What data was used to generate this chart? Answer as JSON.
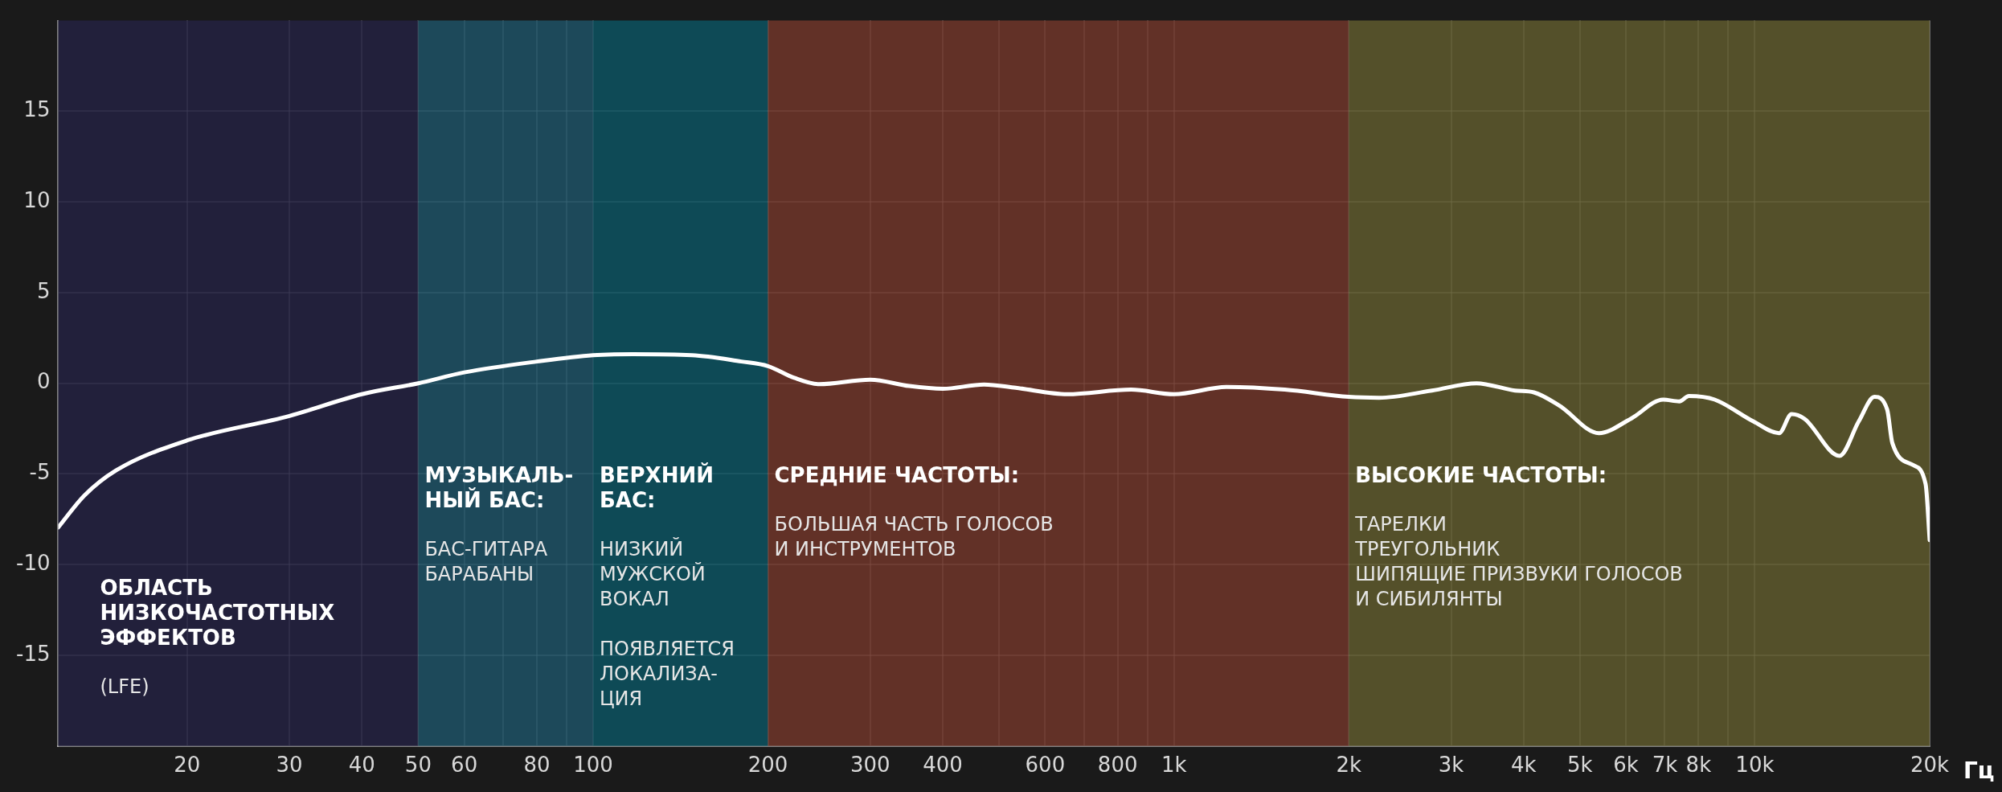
{
  "chart_data": {
    "type": "line",
    "xlabel": "Гц",
    "xlim": [
      12,
      20000
    ],
    "ylim": [
      -20,
      20
    ],
    "log": "x",
    "grid": true,
    "legend": false,
    "marker": "none",
    "line_style": "solid",
    "xticks": [
      20,
      30,
      40,
      50,
      60,
      {
        "value": 70,
        "label": null
      },
      80,
      {
        "value": 90,
        "label": null
      },
      100,
      200,
      300,
      400,
      {
        "value": 500,
        "label": null
      },
      600,
      {
        "value": 700,
        "label": null
      },
      800,
      {
        "value": 900,
        "label": null
      },
      {
        "value": 1000,
        "label": "1k"
      },
      {
        "value": 2000,
        "label": "2k"
      },
      {
        "value": 3000,
        "label": "3k"
      },
      {
        "value": 4000,
        "label": "4k"
      },
      {
        "value": 5000,
        "label": "5k"
      },
      {
        "value": 6000,
        "label": "6k"
      },
      {
        "value": 7000,
        "label": "7k"
      },
      {
        "value": 8000,
        "label": "8k"
      },
      {
        "value": 9000,
        "label": null
      },
      {
        "value": 10000,
        "label": "10k"
      },
      {
        "value": 20000,
        "label": "20k"
      }
    ],
    "yticks": [
      -15,
      -10,
      -5,
      0,
      5,
      10,
      15
    ],
    "series": [
      {
        "color": "#ffffff",
        "x": [
          12,
          13.3,
          15.1,
          20,
          30,
          40,
          50,
          60,
          80,
          100,
          117,
          148,
          180,
          200,
          222,
          245,
          300,
          350,
          400,
          471,
          534,
          655,
          844,
          1000,
          1234,
          1552,
          2000,
          2255,
          2780,
          3318,
          3866,
          4166,
          4617,
          5391,
          6120,
          6954,
          7414,
          7700,
          8530,
          9940,
          11010,
          11570,
          12170,
          13990,
          15100,
          16070,
          16900,
          17250,
          18700,
          19680,
          20000
        ],
        "values": [
          -7.95,
          -6.2,
          -4.8,
          -3.15,
          -1.8,
          -0.6,
          0,
          0.6,
          1.2,
          1.55,
          1.6,
          1.55,
          1.2,
          0.95,
          0.3,
          -0.05,
          0.2,
          -0.15,
          -0.3,
          -0.07,
          -0.25,
          -0.6,
          -0.35,
          -0.6,
          -0.2,
          -0.35,
          -0.75,
          -0.8,
          -0.4,
          0,
          -0.4,
          -0.5,
          -1.25,
          -2.75,
          -1.95,
          -0.9,
          -1.0,
          -0.7,
          -0.9,
          -2.1,
          -2.75,
          -1.7,
          -1.95,
          -4.0,
          -2.1,
          -0.75,
          -1.45,
          -3.3,
          -4.5,
          -5.55,
          -8.65
        ]
      }
    ],
    "bands": [
      {
        "axis": "x",
        "from": 12,
        "to": 50,
        "label": "ОБЛАСТЬ\nНИЗКОЧАСТОТНЫХ\nЭФФЕКТОВ",
        "color": "#242242"
      },
      {
        "axis": "x",
        "from": 50,
        "to": 100,
        "label": "МУЗЫКАЛЬ-\nНЫЙ БАС:",
        "color": "#1f5266"
      },
      {
        "axis": "x",
        "from": 100,
        "to": 200,
        "label": "ВЕРХНИЙ\nБАС:",
        "color": "#0d5461"
      },
      {
        "axis": "x",
        "from": 200,
        "to": 2000,
        "label": "СРЕДНИЕ ЧАСТОТЫ:",
        "color": "#70362a"
      },
      {
        "axis": "x",
        "from": 2000,
        "to": 20000,
        "label": "ВЫСОКИЕ ЧАСТОТЫ:",
        "color": "#5f5b2e"
      }
    ],
    "annotations": [
      "(LFE)",
      "БАС-ГИТАРА\nБАРАБАНЫ",
      "НИЗКИЙ\nМУЖСКОЙ\nВОКАЛ\n\nПОЯВЛЯЕТСЯ\nЛОКАЛИЗА-\nЦИЯ",
      "БОЛЬШАЯ ЧАСТЬ ГОЛОСОВ\nИ ИНСТРУМЕНТОВ",
      "ТАРЕЛКИ\nТРЕУГОЛЬНИК\nШИПЯЩИЕ ПРИЗВУКИ ГОЛОСОВ\nИ СИБИЛЯНТЫ"
    ]
  }
}
